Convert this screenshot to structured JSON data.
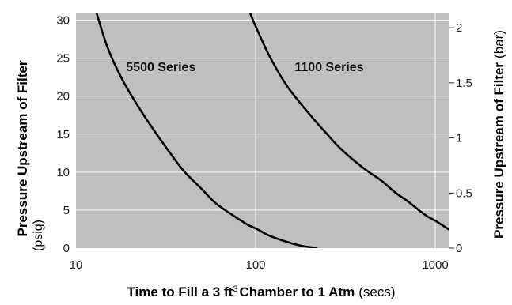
{
  "chart_data": {
    "type": "line",
    "title": "",
    "xscale": "log",
    "xlim": [
      10,
      1200
    ],
    "ylim": [
      0,
      31
    ],
    "xticks": [
      10,
      100,
      1000
    ],
    "xtick_labels": [
      "10",
      "100",
      "1000"
    ],
    "yticks": [
      0,
      5,
      10,
      15,
      20,
      25,
      30
    ],
    "ytick_labels": [
      "0",
      "5",
      "10",
      "15",
      "20",
      "25",
      "30"
    ],
    "y2_ticks_bar": [
      0,
      0.5,
      1,
      1.5,
      2
    ],
    "y2_tick_labels": [
      "0",
      "0.5",
      "1",
      "1.5",
      "2"
    ],
    "y2_bar_to_psig": 14.5038,
    "grid": true,
    "xlabel": {
      "main_before": "Time to Fill a 3 ft",
      "superscript": "3",
      "main_after": "Chamber to 1 Atm",
      "unit": "(secs)"
    },
    "ylabel": {
      "main": "Pressure Upstream of Filter",
      "unit": "(psig)"
    },
    "y2label": {
      "main": "Pressure Upstream of Filter",
      "unit": "(bar)"
    },
    "series": [
      {
        "name": "5500 Series",
        "x": [
          13,
          15,
          18,
          22,
          27,
          33,
          40,
          50,
          60,
          75,
          90,
          100,
          120,
          150,
          180,
          220
        ],
        "y": [
          31,
          26.4,
          22.3,
          18.8,
          15.6,
          12.7,
          10.1,
          7.8,
          5.9,
          4.3,
          3.1,
          2.6,
          1.6,
          0.8,
          0.3,
          0
        ]
      },
      {
        "name": "1100 Series",
        "x": [
          93,
          100,
          120,
          150,
          200,
          250,
          300,
          400,
          500,
          600,
          700,
          800,
          900,
          1000,
          1200
        ],
        "y": [
          31,
          29.2,
          25.2,
          21.3,
          17.6,
          15.0,
          13.0,
          10.5,
          8.9,
          7.3,
          6.2,
          5.1,
          4.2,
          3.6,
          2.4
        ]
      }
    ],
    "series_label_positions": [
      {
        "name": "5500 Series",
        "x": 19,
        "y": 23.3
      },
      {
        "name": "1100 Series",
        "x": 165,
        "y": 23.3
      }
    ],
    "colors": {
      "plot_background": "#bfbfbf",
      "grid": "#ffffff",
      "curve": "#000000",
      "text": "#111111"
    }
  }
}
